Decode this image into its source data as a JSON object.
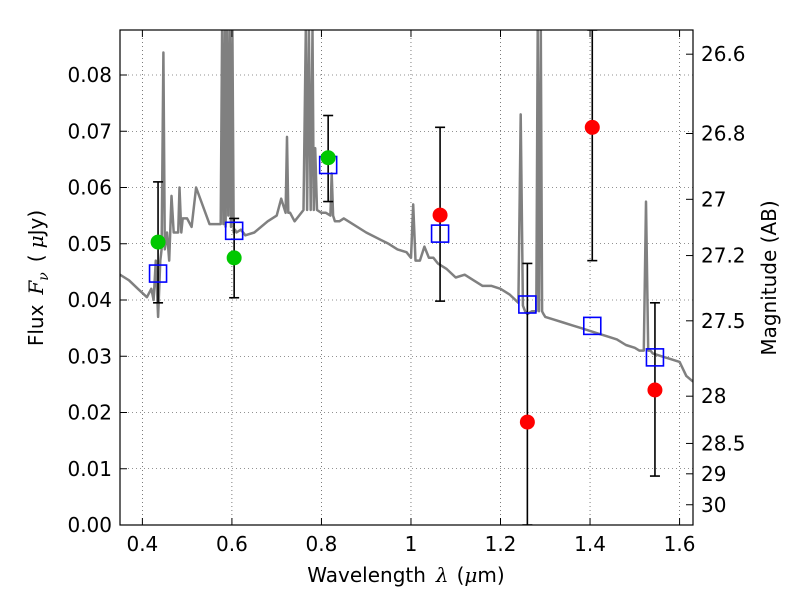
{
  "chart_data": {
    "type": "scatter",
    "title": "",
    "xlabel": {
      "prefix": "Wavelength",
      "lambda": "λ",
      "unit_open": "(",
      "mu": "μ",
      "unit_rest": "m)"
    },
    "ylabel": {
      "prefix": "Flux",
      "f": "F",
      "nu": "ν",
      "unit_open": "(",
      "mu": "μ",
      "unit_rest": "Jy)"
    },
    "ylabel_right": "Magnitude (AB)",
    "xlim": [
      0.35,
      1.63
    ],
    "ylim": [
      0.0,
      0.088
    ],
    "grid": true,
    "x_ticks": [
      {
        "value": 0.4,
        "label": "0.4"
      },
      {
        "value": 0.6,
        "label": "0.6"
      },
      {
        "value": 0.8,
        "label": "0.8"
      },
      {
        "value": 1.0,
        "label": "1"
      },
      {
        "value": 1.2,
        "label": "1.2"
      },
      {
        "value": 1.4,
        "label": "1.4"
      },
      {
        "value": 1.6,
        "label": "1.6"
      }
    ],
    "y_ticks": [
      {
        "value": 0.0,
        "label": "0.00"
      },
      {
        "value": 0.01,
        "label": "0.01"
      },
      {
        "value": 0.02,
        "label": "0.02"
      },
      {
        "value": 0.03,
        "label": "0.03"
      },
      {
        "value": 0.04,
        "label": "0.04"
      },
      {
        "value": 0.05,
        "label": "0.05"
      },
      {
        "value": 0.06,
        "label": "0.06"
      },
      {
        "value": 0.07,
        "label": "0.07"
      },
      {
        "value": 0.08,
        "label": "0.08"
      }
    ],
    "right_ticks": [
      {
        "label": "26.6",
        "flux": 0.0837
      },
      {
        "label": "26.8",
        "flux": 0.0696
      },
      {
        "label": "27",
        "flux": 0.0579
      },
      {
        "label": "27.2",
        "flux": 0.0479
      },
      {
        "label": "27.5",
        "flux": 0.0363
      },
      {
        "label": "28",
        "flux": 0.0229
      },
      {
        "label": "28.5",
        "flux": 0.0145
      },
      {
        "label": "29",
        "flux": 0.0091
      },
      {
        "label": "30",
        "flux": 0.0036
      }
    ],
    "series": [
      {
        "kind": "line",
        "color": "#808080",
        "x": [
          0.35,
          0.37,
          0.39,
          0.41,
          0.42,
          0.425,
          0.43,
          0.435,
          0.44,
          0.443,
          0.447,
          0.45,
          0.455,
          0.46,
          0.465,
          0.47,
          0.48,
          0.483,
          0.487,
          0.49,
          0.5,
          0.51,
          0.52,
          0.55,
          0.575,
          0.578,
          0.581,
          0.584,
          0.586,
          0.589,
          0.592,
          0.595,
          0.598,
          0.601,
          0.604,
          0.607,
          0.61,
          0.62,
          0.63,
          0.65,
          0.68,
          0.7,
          0.71,
          0.72,
          0.723,
          0.726,
          0.73,
          0.74,
          0.75,
          0.76,
          0.765,
          0.768,
          0.772,
          0.776,
          0.78,
          0.783,
          0.786,
          0.79,
          0.8,
          0.81,
          0.82,
          0.823,
          0.826,
          0.83,
          0.84,
          0.85,
          0.9,
          0.95,
          0.97,
          0.99,
          1.0,
          1.005,
          1.01,
          1.02,
          1.03,
          1.04,
          1.05,
          1.06,
          1.08,
          1.1,
          1.12,
          1.14,
          1.16,
          1.18,
          1.2,
          1.22,
          1.24,
          1.245,
          1.25,
          1.255,
          1.26,
          1.27,
          1.28,
          1.283,
          1.286,
          1.29,
          1.293,
          1.296,
          1.3,
          1.32,
          1.34,
          1.36,
          1.38,
          1.4,
          1.42,
          1.44,
          1.46,
          1.48,
          1.5,
          1.51,
          1.52,
          1.525,
          1.53,
          1.535,
          1.54,
          1.56,
          1.58,
          1.6,
          1.615,
          1.63
        ],
        "y": [
          0.0445,
          0.0435,
          0.042,
          0.0405,
          0.042,
          0.04,
          0.047,
          0.037,
          0.047,
          0.049,
          0.084,
          0.049,
          0.052,
          0.047,
          0.0585,
          0.052,
          0.052,
          0.06,
          0.052,
          0.0545,
          0.0545,
          0.053,
          0.06,
          0.0535,
          0.0535,
          0.088,
          0.0535,
          0.088,
          0.053,
          0.088,
          0.055,
          0.088,
          0.053,
          0.088,
          0.052,
          0.0525,
          0.052,
          0.0525,
          0.0515,
          0.052,
          0.054,
          0.055,
          0.058,
          0.0555,
          0.069,
          0.0555,
          0.0555,
          0.054,
          0.055,
          0.056,
          0.088,
          0.056,
          0.088,
          0.056,
          0.088,
          0.056,
          0.067,
          0.056,
          0.0555,
          0.0555,
          0.055,
          0.0625,
          0.055,
          0.054,
          0.054,
          0.0545,
          0.052,
          0.05,
          0.049,
          0.0485,
          0.0475,
          0.057,
          0.047,
          0.047,
          0.0495,
          0.0475,
          0.0475,
          0.0465,
          0.0455,
          0.044,
          0.0445,
          0.0435,
          0.0425,
          0.0425,
          0.042,
          0.041,
          0.0395,
          0.073,
          0.039,
          0.038,
          0.0375,
          0.038,
          0.038,
          0.088,
          0.038,
          0.088,
          0.038,
          0.0375,
          0.037,
          0.0365,
          0.036,
          0.0355,
          0.035,
          0.0345,
          0.034,
          0.0335,
          0.033,
          0.032,
          0.0315,
          0.031,
          0.031,
          0.0575,
          0.031,
          0.031,
          0.0305,
          0.03,
          0.0295,
          0.029,
          0.0265,
          0.0255
        ]
      },
      {
        "kind": "points",
        "marker": "square",
        "color": "#0000ff",
        "x": [
          0.435,
          0.605,
          0.815,
          1.065,
          1.26,
          1.405,
          1.545
        ],
        "y": [
          0.0447,
          0.0523,
          0.064,
          0.0518,
          0.0392,
          0.0354,
          0.0298
        ]
      },
      {
        "kind": "points",
        "marker": "circle",
        "color": "#00c800",
        "x": [
          0.435,
          0.605,
          0.815
        ],
        "y": [
          0.0503,
          0.0475,
          0.0653
        ]
      },
      {
        "kind": "points",
        "marker": "circle",
        "color": "#ff0000",
        "x": [
          1.065,
          1.26,
          1.405,
          1.545
        ],
        "y": [
          0.0551,
          0.0183,
          0.0707,
          0.024
        ]
      }
    ],
    "error_bars": [
      {
        "x": 0.435,
        "low": 0.0395,
        "high": 0.061
      },
      {
        "x": 0.605,
        "low": 0.0404,
        "high": 0.0545
      },
      {
        "x": 0.815,
        "low": 0.0575,
        "high": 0.0728
      },
      {
        "x": 1.065,
        "low": 0.0398,
        "high": 0.0707
      },
      {
        "x": 1.26,
        "low": 0.0,
        "high": 0.0465
      },
      {
        "x": 1.405,
        "low": 0.047,
        "high": 0.088
      },
      {
        "x": 1.545,
        "low": 0.0087,
        "high": 0.0395
      }
    ]
  }
}
